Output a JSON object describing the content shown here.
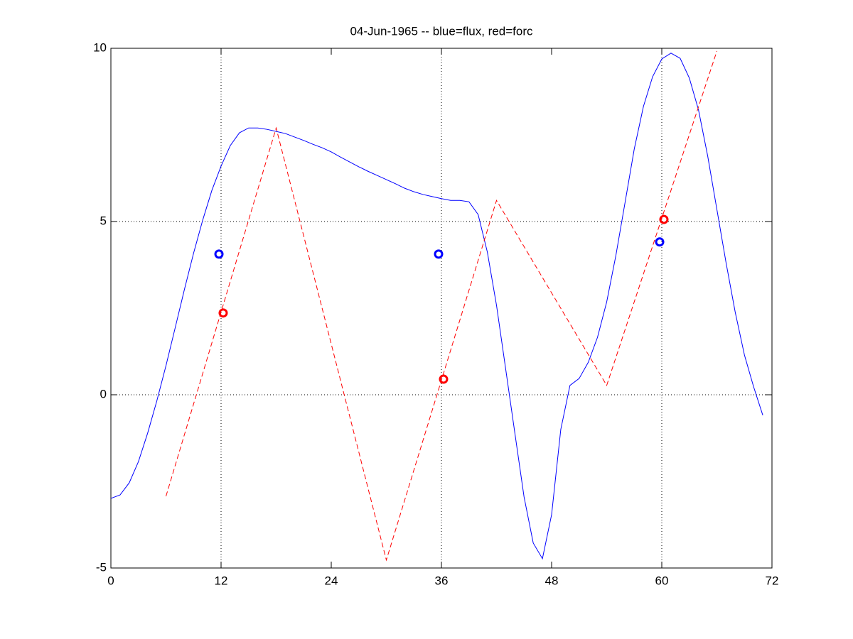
{
  "chart_data": {
    "type": "line",
    "title": "04-Jun-1965 -- blue=flux, red=forc",
    "xlim": [
      0,
      72
    ],
    "xticks": [
      0,
      12,
      24,
      36,
      48,
      60,
      72
    ],
    "ylim": [
      -5,
      10
    ],
    "yticks": [
      -5,
      0,
      5,
      10
    ],
    "xgrid": [
      12,
      36,
      60
    ],
    "ygrid": [
      0,
      5
    ],
    "series": [
      {
        "color": "#0000ff",
        "style": "solid",
        "x": [
          0,
          1,
          2,
          3,
          4,
          5,
          6,
          7,
          8,
          9,
          10,
          11,
          12,
          13,
          14,
          15,
          16,
          17,
          18,
          19,
          20,
          21,
          22,
          23,
          24,
          25,
          26,
          27,
          28,
          29,
          30,
          31,
          32,
          33,
          34,
          35,
          36,
          37,
          38,
          39,
          40,
          41,
          42,
          43,
          44,
          45,
          46,
          47,
          48,
          49,
          50,
          51,
          52,
          53,
          54,
          55,
          56,
          57,
          58,
          59,
          60,
          61,
          62,
          63,
          64,
          65,
          66,
          67,
          68,
          69,
          70,
          71
        ],
        "values": [
          -2.99,
          -2.89,
          -2.54,
          -1.93,
          -1.11,
          -0.18,
          0.84,
          1.93,
          3.03,
          4.08,
          5.04,
          5.9,
          6.6,
          7.19,
          7.56,
          7.7,
          7.7,
          7.66,
          7.6,
          7.54,
          7.44,
          7.34,
          7.23,
          7.13,
          7.01,
          6.86,
          6.72,
          6.58,
          6.45,
          6.33,
          6.21,
          6.09,
          5.96,
          5.86,
          5.78,
          5.72,
          5.66,
          5.61,
          5.61,
          5.57,
          5.2,
          4.12,
          2.58,
          0.74,
          -1.11,
          -2.95,
          -4.28,
          -4.73,
          -3.46,
          -1.0,
          0.27,
          0.47,
          0.94,
          1.66,
          2.68,
          4.02,
          5.55,
          7.09,
          8.32,
          9.18,
          9.69,
          9.86,
          9.71,
          9.14,
          8.22,
          6.89,
          5.35,
          3.81,
          2.38,
          1.15,
          0.23,
          -0.59
        ]
      },
      {
        "color": "#ff0000",
        "style": "dashed",
        "x": [
          6,
          18,
          30,
          42,
          54,
          66
        ],
        "values": [
          -2.93,
          7.7,
          -4.77,
          5.61,
          0.27,
          9.92
        ]
      },
      {
        "color": "#0000ff",
        "style": "markers",
        "x": [
          11.77,
          35.69,
          59.77
        ],
        "values": [
          4.06,
          4.06,
          4.41
        ]
      },
      {
        "color": "#ff0000",
        "style": "markers",
        "x": [
          12.23,
          36.23,
          60.23
        ],
        "values": [
          2.36,
          0.45,
          5.06
        ]
      }
    ]
  }
}
